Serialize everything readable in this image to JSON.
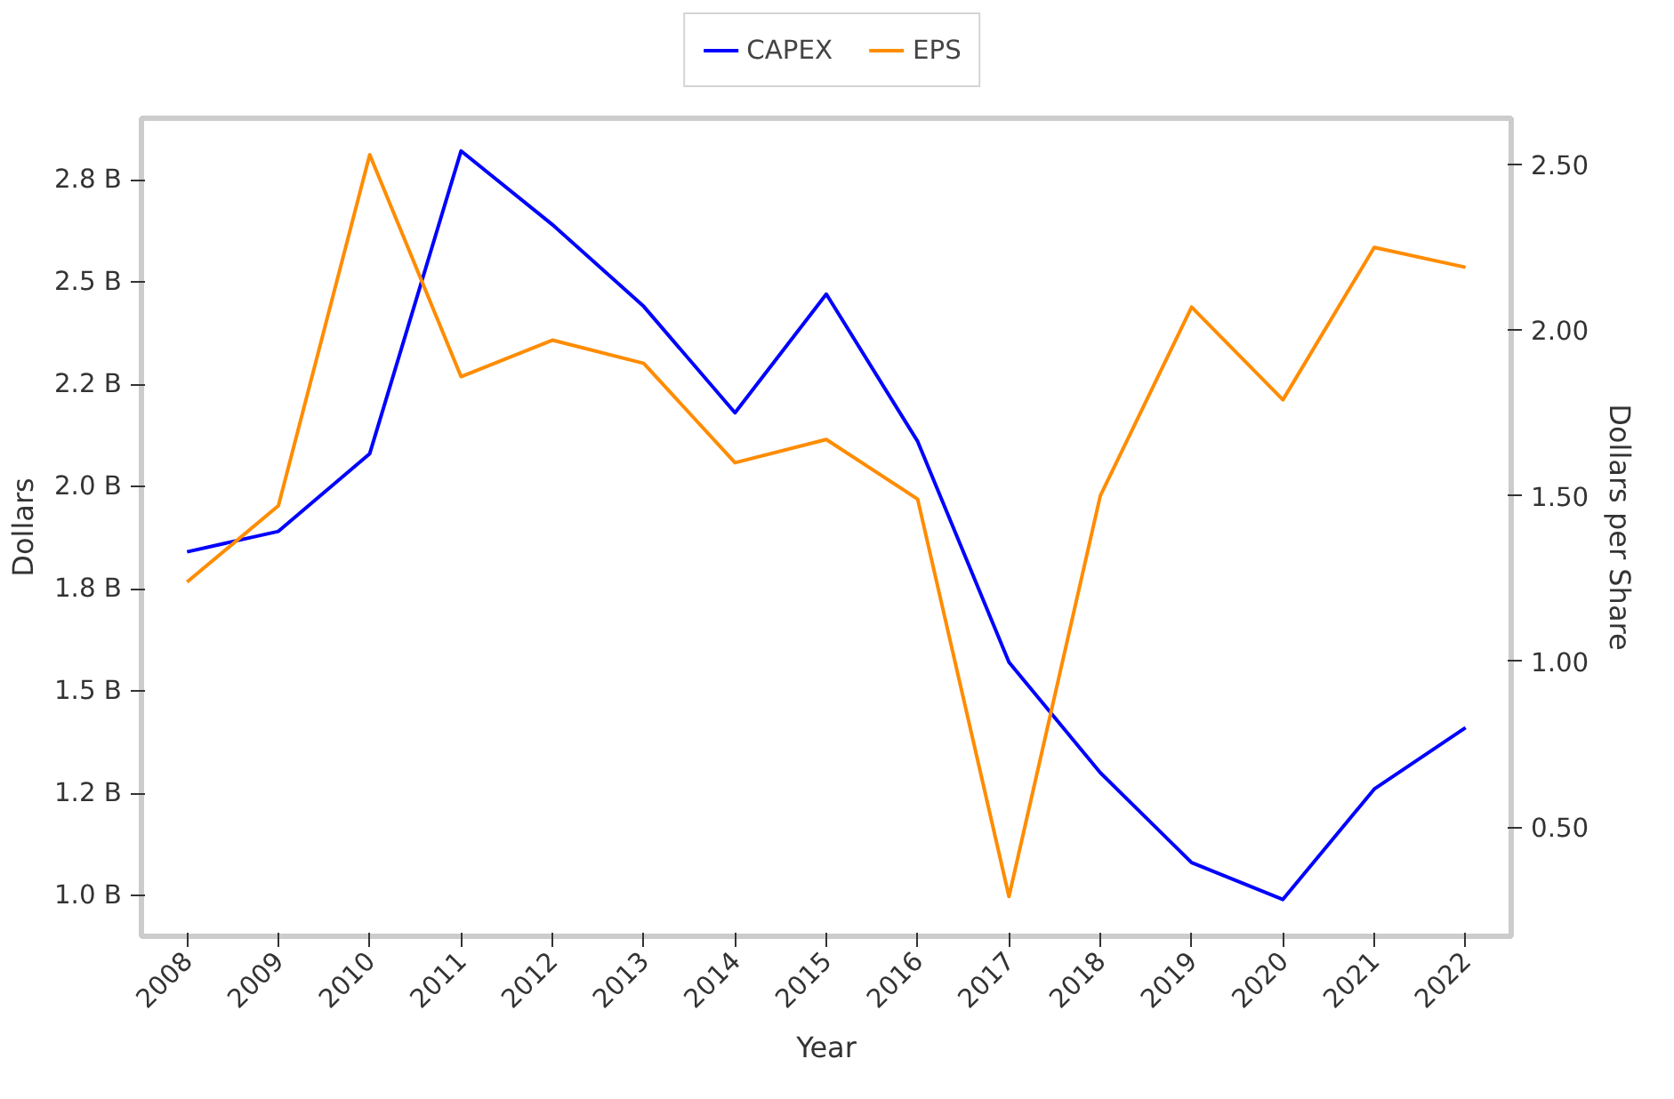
{
  "chart_data": {
    "type": "line",
    "xlabel": "Year",
    "ylabel": "Dollars",
    "y2label": "Dollars per Share",
    "categories": [
      "2008",
      "2009",
      "2010",
      "2011",
      "2012",
      "2013",
      "2014",
      "2015",
      "2016",
      "2017",
      "2018",
      "2019",
      "2020",
      "2021",
      "2022"
    ],
    "series": [
      {
        "name": "CAPEX",
        "color": "#0000ff",
        "values": [
          1.84,
          1.89,
          2.08,
          2.82,
          2.64,
          2.44,
          2.18,
          2.47,
          2.11,
          1.57,
          1.3,
          1.08,
          0.99,
          1.26,
          1.41
        ]
      },
      {
        "name": "EPS",
        "color": "#ff8c00",
        "axis": "y2",
        "values": [
          1.24,
          1.47,
          2.53,
          1.86,
          1.97,
          1.9,
          1.6,
          1.67,
          1.49,
          0.29,
          1.5,
          2.07,
          1.79,
          2.25,
          2.19
        ]
      }
    ],
    "ylim": [
      0.9,
      2.9
    ],
    "yticks": [
      {
        "value": 1.0,
        "label": "1.0 B"
      },
      {
        "value": 1.25,
        "label": "1.2 B"
      },
      {
        "value": 1.5,
        "label": "1.5 B"
      },
      {
        "value": 1.75,
        "label": "1.8 B"
      },
      {
        "value": 2.0,
        "label": "2.0 B"
      },
      {
        "value": 2.25,
        "label": "2.2 B"
      },
      {
        "value": 2.5,
        "label": "2.5 B"
      },
      {
        "value": 2.75,
        "label": "2.8 B"
      }
    ],
    "y2lim": [
      0.17,
      2.64
    ],
    "y2ticks": [
      {
        "value": 0.5,
        "label": "0.50"
      },
      {
        "value": 1.0,
        "label": "1.00"
      },
      {
        "value": 1.5,
        "label": "1.50"
      },
      {
        "value": 2.0,
        "label": "2.00"
      },
      {
        "value": 2.5,
        "label": "2.50"
      }
    ],
    "grid": false,
    "legend": "top",
    "line_style": "solid",
    "marker": "none"
  }
}
